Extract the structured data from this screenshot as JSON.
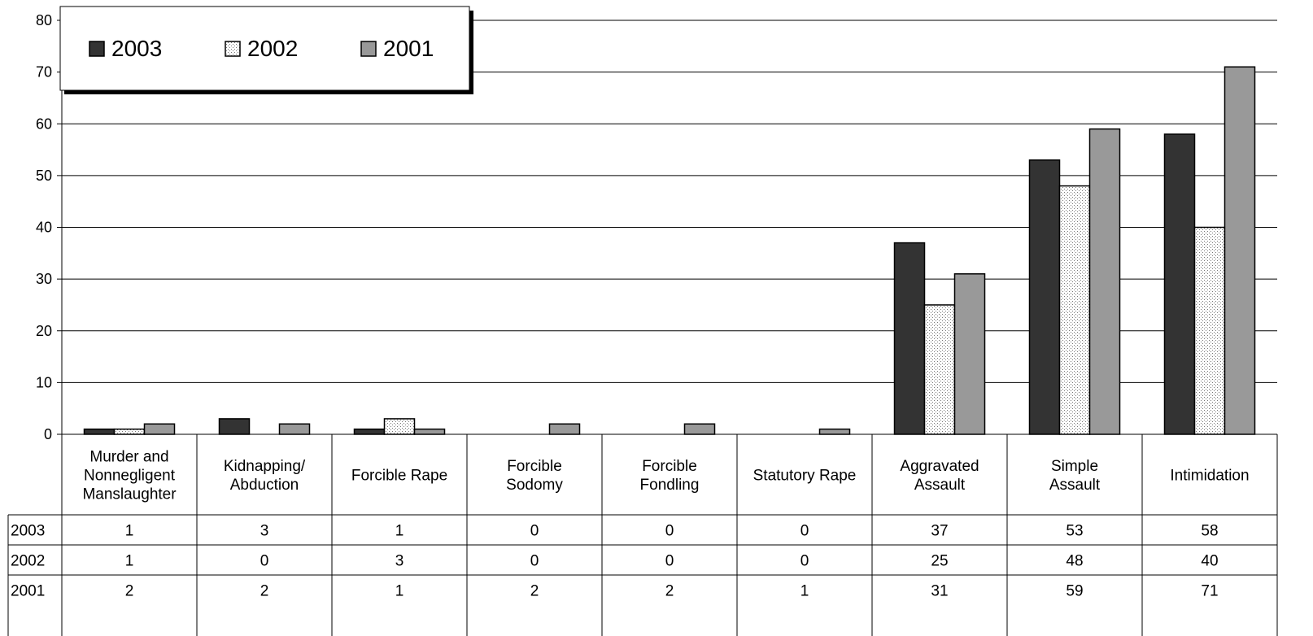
{
  "chart_data": {
    "type": "bar",
    "categories": [
      "Murder and Nonnegligent Manslaughter",
      "Kidnapping/ Abduction",
      "Forcible Rape",
      "Forcible Sodomy",
      "Forcible Fondling",
      "Statutory Rape",
      "Aggravated Assault",
      "Simple Assault",
      "Intimidation"
    ],
    "category_lines": [
      [
        "Murder and",
        "Nonnegligent",
        "Manslaughter"
      ],
      [
        "Kidnapping/",
        "Abduction"
      ],
      [
        "Forcible Rape"
      ],
      [
        "Forcible",
        "Sodomy"
      ],
      [
        "Forcible",
        "Fondling"
      ],
      [
        "Statutory Rape"
      ],
      [
        "Aggravated",
        "Assault"
      ],
      [
        "Simple",
        "Assault"
      ],
      [
        "Intimidation"
      ]
    ],
    "series": [
      {
        "name": "2003",
        "values": [
          1,
          3,
          1,
          0,
          0,
          0,
          37,
          53,
          58
        ],
        "color": "#333333",
        "pattern": "solid"
      },
      {
        "name": "2002",
        "values": [
          1,
          0,
          3,
          0,
          0,
          0,
          25,
          48,
          40
        ],
        "color": "#f4f4f4",
        "pattern": "dotted"
      },
      {
        "name": "2001",
        "values": [
          2,
          2,
          1,
          2,
          2,
          1,
          31,
          59,
          71
        ],
        "color": "#999999",
        "pattern": "solid"
      }
    ],
    "ylim": [
      0,
      80
    ],
    "yticks": [
      0,
      10,
      20,
      30,
      40,
      50,
      60,
      70,
      80
    ],
    "grid": true,
    "legend": "top-left",
    "data_table": true
  }
}
